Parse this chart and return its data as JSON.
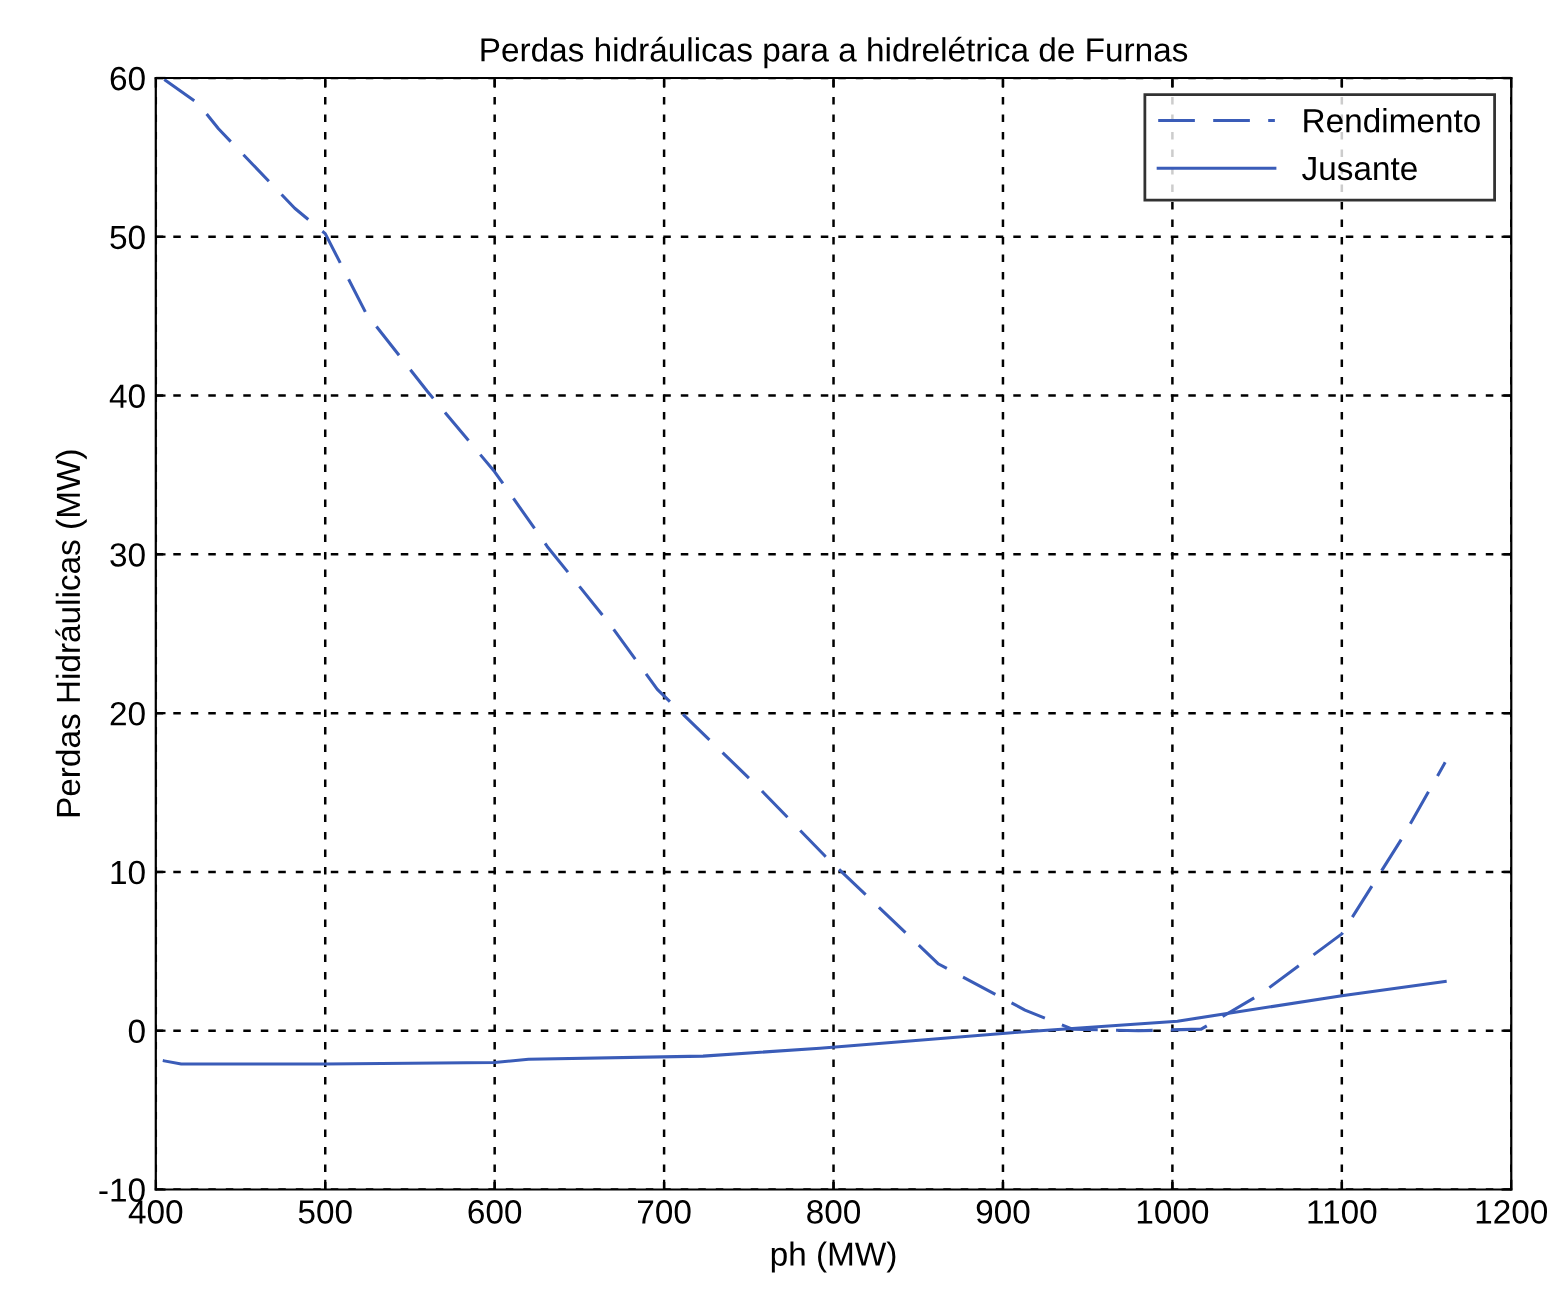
{
  "chart_data": {
    "type": "line",
    "title": "Perdas hidráulicas para a hidrelétrica de Furnas",
    "xlabel": "ph (MW)",
    "ylabel": "Perdas Hidráulicas (MW)",
    "xlim": [
      400,
      1200
    ],
    "xticks": [
      400,
      500,
      600,
      700,
      800,
      900,
      1000,
      1100,
      1200
    ],
    "ylim": [
      -10,
      60
    ],
    "yticks": [
      -10,
      0,
      10,
      20,
      30,
      40,
      50,
      60
    ],
    "grid": true,
    "legend": "top right",
    "series": [
      {
        "name": "Rendimento",
        "color": "#3a5cb8",
        "line_style": "dashed",
        "x": [
          405,
          425,
          437,
          482,
          500,
          524,
          560,
          600,
          631,
          668,
          696,
          755,
          795,
          862,
          913,
          941,
          980,
          1017,
          1052,
          1100,
          1136,
          1161
        ],
        "values": [
          59.9,
          58.4,
          56.8,
          51.8,
          50.2,
          45.2,
          40.3,
          35.2,
          30.5,
          25.6,
          21.5,
          15.4,
          11,
          4.2,
          1.3,
          0.1,
          0,
          0.1,
          2.3,
          6.1,
          12.2,
          16.9
        ]
      },
      {
        "name": "Jusante",
        "color": "#3a5cb8",
        "line_style": "solid",
        "x": [
          405,
          415,
          500,
          600,
          620,
          723,
          792,
          909,
          1003,
          1100,
          1161
        ],
        "values": [
          -1.9,
          -2.1,
          -2.1,
          -2.0,
          -1.8,
          -1.6,
          -1.1,
          -0.1,
          0.6,
          2.2,
          3.1
        ]
      }
    ]
  }
}
